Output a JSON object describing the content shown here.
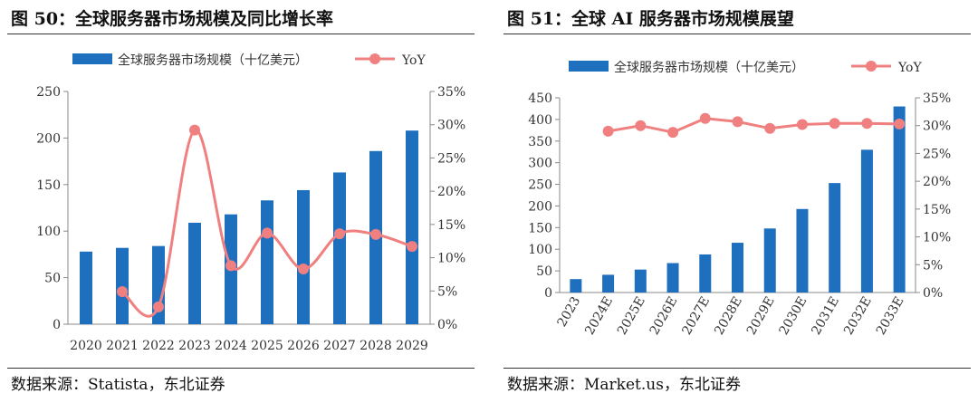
{
  "chart_data": [
    {
      "type": "bar",
      "figure_title": "图 50：全球服务器市场规模及同比增长率",
      "source": "数据来源：Statista，东北证券",
      "categories": [
        "2020",
        "2021",
        "2022",
        "2023",
        "2024",
        "2025",
        "2026",
        "2027",
        "2028",
        "2029"
      ],
      "series": [
        {
          "name": "全球服务器市场规模（十亿美元）",
          "type": "bar",
          "axis": "left",
          "color": "#1f6fbf",
          "values": [
            78,
            82,
            84,
            109,
            118,
            133,
            144,
            163,
            186,
            208
          ]
        },
        {
          "name": "YoY",
          "type": "line",
          "axis": "right",
          "color": "#f08080",
          "values": [
            null,
            4.9,
            2.6,
            29.2,
            8.8,
            13.7,
            8.3,
            13.6,
            13.5,
            11.7
          ]
        }
      ],
      "ylim_left": [
        0,
        250
      ],
      "ylim_right": [
        0,
        35
      ],
      "yticks_left": [
        "0",
        "50",
        "100",
        "150",
        "200",
        "250"
      ],
      "yticks_right": [
        "0%",
        "5%",
        "10%",
        "15%",
        "20%",
        "25%",
        "30%",
        "35%"
      ],
      "legend": "top",
      "grid": false
    },
    {
      "type": "bar",
      "figure_title": "图 51：全球 AI 服务器市场规模展望",
      "source": "数据来源：Market.us，东北证券",
      "categories": [
        "2023",
        "2024E",
        "2025E",
        "2026E",
        "2027E",
        "2028E",
        "2029E",
        "2030E",
        "2031E",
        "2032E",
        "2033E"
      ],
      "series": [
        {
          "name": "全球服务器市场规模（十亿美元）",
          "type": "bar",
          "axis": "left",
          "color": "#1f6fbf",
          "values": [
            31,
            41,
            53,
            68,
            88,
            115,
            148,
            193,
            253,
            330,
            430
          ]
        },
        {
          "name": "YoY",
          "type": "line",
          "axis": "right",
          "color": "#f08080",
          "values": [
            null,
            29.0,
            30.0,
            28.8,
            31.3,
            30.7,
            29.5,
            30.2,
            30.4,
            30.4,
            30.3
          ]
        }
      ],
      "ylim_left": [
        0,
        450
      ],
      "ylim_right": [
        0,
        35
      ],
      "yticks_left": [
        "0",
        "50",
        "100",
        "150",
        "200",
        "250",
        "300",
        "350",
        "400",
        "450"
      ],
      "yticks_right": [
        "0%",
        "5%",
        "10%",
        "15%",
        "20%",
        "25%",
        "30%",
        "35%"
      ],
      "legend": "top",
      "grid": false
    }
  ]
}
